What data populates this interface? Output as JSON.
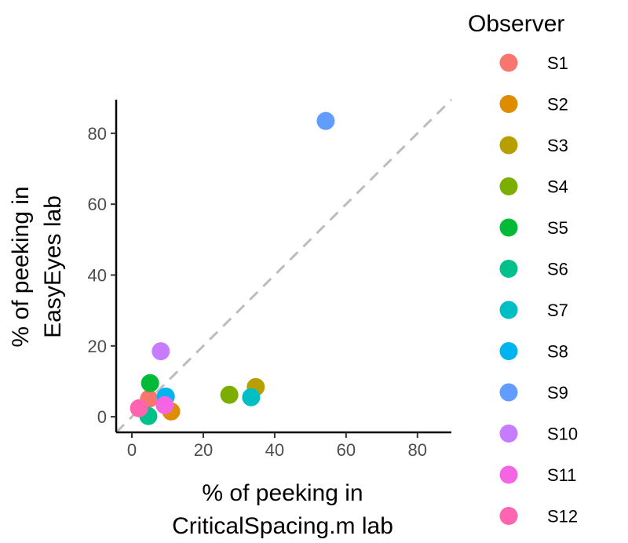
{
  "chart_data": {
    "type": "scatter",
    "title": "",
    "xlabel": [
      "% of peeking in",
      "CriticalSpacing.m lab"
    ],
    "ylabel": [
      "% of peeking in",
      "EasyEyes lab"
    ],
    "xlim": [
      -4.4,
      89.5
    ],
    "ylim": [
      -4.4,
      89.5
    ],
    "xticks": [
      0,
      20,
      40,
      60,
      80
    ],
    "yticks": [
      0,
      20,
      40,
      60,
      80
    ],
    "reference_line": "y = x (dashed gray)",
    "legend": {
      "title": "Observer",
      "placement": "right"
    },
    "series": [
      {
        "name": "S1",
        "color": "#F8766D",
        "x": 4.8,
        "y": 5.1
      },
      {
        "name": "S2",
        "color": "#DE8C00",
        "x": 11.0,
        "y": 1.5
      },
      {
        "name": "S3",
        "color": "#B79F00",
        "x": 34.7,
        "y": 8.4
      },
      {
        "name": "S4",
        "color": "#7CAE00",
        "x": 27.3,
        "y": 6.2
      },
      {
        "name": "S5",
        "color": "#00BA38",
        "x": 5.1,
        "y": 9.5
      },
      {
        "name": "S6",
        "color": "#00C08B",
        "x": 4.6,
        "y": 0.2
      },
      {
        "name": "S7",
        "color": "#00BFC4",
        "x": 33.4,
        "y": 5.5
      },
      {
        "name": "S8",
        "color": "#00B4F0",
        "x": 9.5,
        "y": 5.7
      },
      {
        "name": "S9",
        "color": "#619CFF",
        "x": 54.3,
        "y": 83.5
      },
      {
        "name": "S10",
        "color": "#C77CFF",
        "x": 8.1,
        "y": 18.5
      },
      {
        "name": "S11",
        "color": "#F564E3",
        "x": 9.2,
        "y": 3.3
      },
      {
        "name": "S12",
        "color": "#FF64B0",
        "x": 2.0,
        "y": 2.4
      }
    ]
  }
}
